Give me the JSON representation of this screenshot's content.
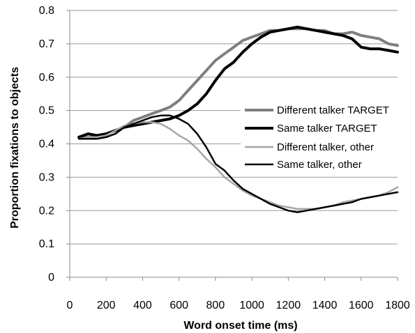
{
  "chart_data": {
    "type": "line",
    "title": "",
    "xlabel": "Word onset time (ms)",
    "ylabel": "Proportion fixations to objects",
    "xlim": [
      0,
      1800
    ],
    "ylim": [
      0,
      0.8
    ],
    "x_ticks": [
      "0",
      "200",
      "400",
      "600",
      "800",
      "1000",
      "1200",
      "1400",
      "1600",
      "1800"
    ],
    "y_ticks": [
      "0",
      "0.1",
      "0.2",
      "0.3",
      "0.4",
      "0.5",
      "0.6",
      "0.7",
      "0.8"
    ],
    "grid": "horizontal",
    "legend_position": "right-center",
    "series": [
      {
        "name": "Different talker TARGET",
        "color": "#7f7f7f",
        "style": "solid-thick",
        "x": [
          50,
          100,
          150,
          200,
          250,
          300,
          350,
          400,
          450,
          500,
          550,
          600,
          650,
          700,
          750,
          800,
          850,
          900,
          950,
          1000,
          1050,
          1100,
          1150,
          1200,
          1250,
          1300,
          1350,
          1400,
          1450,
          1500,
          1550,
          1600,
          1650,
          1700,
          1750,
          1800
        ],
        "values": [
          0.42,
          0.42,
          0.42,
          0.43,
          0.44,
          0.45,
          0.47,
          0.48,
          0.49,
          0.5,
          0.51,
          0.53,
          0.56,
          0.59,
          0.62,
          0.65,
          0.67,
          0.69,
          0.71,
          0.72,
          0.73,
          0.74,
          0.74,
          0.745,
          0.745,
          0.745,
          0.74,
          0.74,
          0.73,
          0.73,
          0.735,
          0.725,
          0.72,
          0.715,
          0.7,
          0.695
        ]
      },
      {
        "name": "Same talker TARGET",
        "color": "#000000",
        "style": "solid-thick",
        "x": [
          50,
          100,
          150,
          200,
          250,
          300,
          350,
          400,
          450,
          500,
          550,
          600,
          650,
          700,
          750,
          800,
          850,
          900,
          950,
          1000,
          1050,
          1100,
          1150,
          1200,
          1250,
          1300,
          1350,
          1400,
          1450,
          1500,
          1550,
          1600,
          1650,
          1700,
          1750,
          1800
        ],
        "values": [
          0.42,
          0.43,
          0.425,
          0.43,
          0.44,
          0.45,
          0.455,
          0.46,
          0.465,
          0.47,
          0.475,
          0.485,
          0.5,
          0.52,
          0.55,
          0.59,
          0.625,
          0.645,
          0.675,
          0.7,
          0.72,
          0.735,
          0.74,
          0.745,
          0.75,
          0.745,
          0.74,
          0.735,
          0.73,
          0.725,
          0.715,
          0.69,
          0.685,
          0.685,
          0.68,
          0.675
        ]
      },
      {
        "name": "Different talker, other",
        "color": "#a6a6a6",
        "style": "solid",
        "x": [
          50,
          100,
          150,
          200,
          250,
          300,
          350,
          400,
          450,
          500,
          550,
          600,
          650,
          700,
          750,
          800,
          850,
          900,
          950,
          1000,
          1050,
          1100,
          1150,
          1200,
          1250,
          1300,
          1350,
          1400,
          1450,
          1500,
          1550,
          1600,
          1650,
          1700,
          1750,
          1800
        ],
        "values": [
          0.415,
          0.42,
          0.42,
          0.425,
          0.44,
          0.455,
          0.46,
          0.465,
          0.465,
          0.46,
          0.445,
          0.425,
          0.41,
          0.385,
          0.355,
          0.33,
          0.3,
          0.28,
          0.26,
          0.245,
          0.235,
          0.225,
          0.215,
          0.21,
          0.205,
          0.205,
          0.205,
          0.21,
          0.215,
          0.225,
          0.23,
          0.235,
          0.24,
          0.245,
          0.255,
          0.27
        ]
      },
      {
        "name": "Same talker, other",
        "color": "#000000",
        "style": "solid",
        "x": [
          50,
          100,
          150,
          200,
          250,
          300,
          350,
          400,
          450,
          500,
          550,
          600,
          650,
          700,
          750,
          800,
          850,
          900,
          950,
          1000,
          1050,
          1100,
          1150,
          1200,
          1250,
          1300,
          1350,
          1400,
          1450,
          1500,
          1550,
          1600,
          1650,
          1700,
          1750,
          1800
        ],
        "values": [
          0.415,
          0.415,
          0.415,
          0.42,
          0.43,
          0.45,
          0.46,
          0.47,
          0.48,
          0.485,
          0.485,
          0.475,
          0.46,
          0.43,
          0.39,
          0.34,
          0.32,
          0.29,
          0.265,
          0.25,
          0.235,
          0.22,
          0.21,
          0.2,
          0.195,
          0.2,
          0.205,
          0.21,
          0.215,
          0.22,
          0.225,
          0.235,
          0.24,
          0.245,
          0.25,
          0.255
        ]
      }
    ]
  }
}
